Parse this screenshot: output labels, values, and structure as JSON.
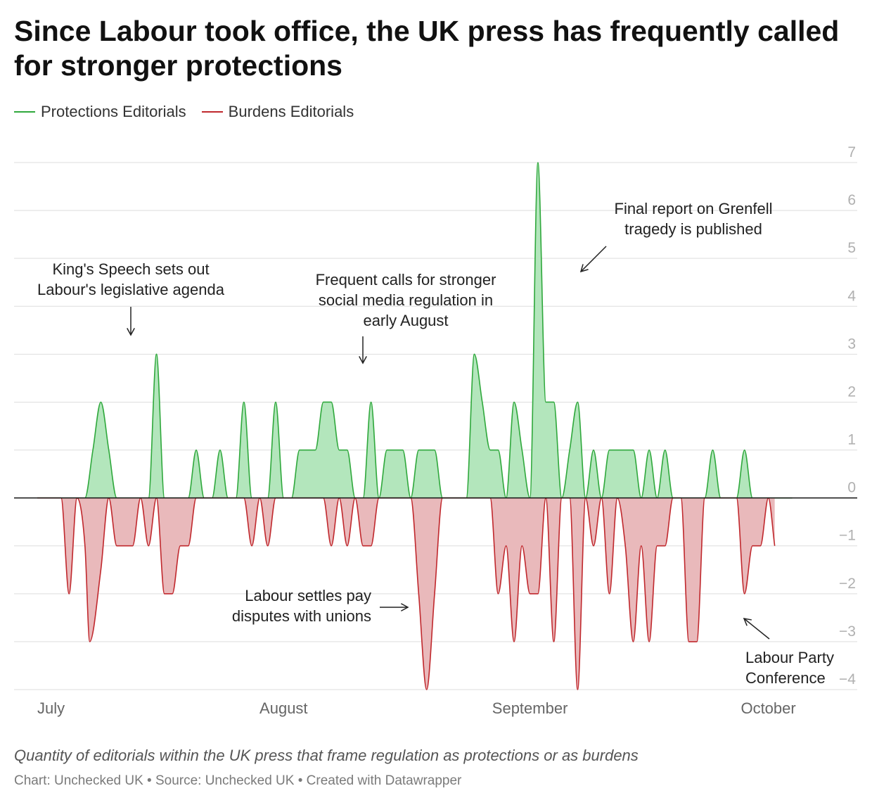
{
  "title": "Since Labour took office, the UK press has frequently called for stronger protections",
  "legend": [
    {
      "label": "Protections Editorials",
      "color": "#2fa83c"
    },
    {
      "label": "Burdens Editorials",
      "color": "#c0282d"
    }
  ],
  "colors": {
    "protections_line": "#2fa83c",
    "protections_fill": "#b3e6bc",
    "burdens_line": "#c0282d",
    "burdens_fill": "#e9b9bb"
  },
  "chart_data": {
    "type": "area",
    "title": "Since Labour took office, the UK press has frequently called for stronger protections",
    "xlabel": "",
    "ylabel": "",
    "ylim": [
      -4,
      7
    ],
    "x_range": [
      0,
      95
    ],
    "y_ticks": [
      {
        "value": 7,
        "label": "7"
      },
      {
        "value": 6,
        "label": "6"
      },
      {
        "value": 5,
        "label": "5"
      },
      {
        "value": 4,
        "label": "4"
      },
      {
        "value": 3,
        "label": "3"
      },
      {
        "value": 2,
        "label": "2"
      },
      {
        "value": 1,
        "label": "1"
      },
      {
        "value": 0,
        "label": "0"
      },
      {
        "value": -1,
        "label": "−1"
      },
      {
        "value": -2,
        "label": "−2"
      },
      {
        "value": -3,
        "label": "−3"
      },
      {
        "value": -4,
        "label": "−4"
      }
    ],
    "x_ticks": [
      {
        "day": 0,
        "label": "July"
      },
      {
        "day": 31,
        "label": "August"
      },
      {
        "day": 62,
        "label": "September"
      },
      {
        "day": 92,
        "label": "October"
      }
    ],
    "series": [
      {
        "name": "Protections Editorials",
        "points": [
          [
            0,
            0
          ],
          [
            6,
            0
          ],
          [
            7,
            1
          ],
          [
            8,
            2
          ],
          [
            9,
            1
          ],
          [
            10,
            0
          ],
          [
            14,
            0
          ],
          [
            15,
            3
          ],
          [
            16,
            0
          ],
          [
            19,
            0
          ],
          [
            20,
            1
          ],
          [
            21,
            0
          ],
          [
            22,
            0
          ],
          [
            23,
            1
          ],
          [
            24,
            0
          ],
          [
            25,
            0
          ],
          [
            26,
            2
          ],
          [
            27,
            0
          ],
          [
            29,
            0
          ],
          [
            30,
            2
          ],
          [
            31,
            0
          ],
          [
            32,
            0
          ],
          [
            33,
            1
          ],
          [
            34,
            1
          ],
          [
            35,
            1
          ],
          [
            36,
            2
          ],
          [
            37,
            2
          ],
          [
            38,
            1
          ],
          [
            39,
            1
          ],
          [
            40,
            0
          ],
          [
            41,
            0
          ],
          [
            42,
            2
          ],
          [
            43,
            0
          ],
          [
            44,
            1
          ],
          [
            45,
            1
          ],
          [
            46,
            1
          ],
          [
            47,
            0
          ],
          [
            48,
            1
          ],
          [
            49,
            1
          ],
          [
            50,
            1
          ],
          [
            51,
            0
          ],
          [
            54,
            0
          ],
          [
            55,
            3
          ],
          [
            56,
            2
          ],
          [
            57,
            1
          ],
          [
            58,
            1
          ],
          [
            59,
            0
          ],
          [
            60,
            2
          ],
          [
            61,
            1
          ],
          [
            62,
            0
          ],
          [
            63,
            7
          ],
          [
            64,
            2
          ],
          [
            65,
            2
          ],
          [
            66,
            0
          ],
          [
            67,
            1
          ],
          [
            68,
            2
          ],
          [
            69,
            0
          ],
          [
            70,
            1
          ],
          [
            71,
            0
          ],
          [
            72,
            1
          ],
          [
            73,
            1
          ],
          [
            74,
            1
          ],
          [
            75,
            1
          ],
          [
            76,
            0
          ],
          [
            77,
            1
          ],
          [
            78,
            0
          ],
          [
            79,
            1
          ],
          [
            80,
            0
          ],
          [
            84,
            0
          ],
          [
            85,
            1
          ],
          [
            86,
            0
          ],
          [
            88,
            0
          ],
          [
            89,
            1
          ],
          [
            90,
            0
          ],
          [
            95,
            0
          ]
        ]
      },
      {
        "name": "Burdens Editorials",
        "points": [
          [
            0,
            0
          ],
          [
            3,
            0
          ],
          [
            4,
            -2
          ],
          [
            5,
            0
          ],
          [
            6,
            -1
          ],
          [
            6.6,
            -3
          ],
          [
            8,
            -1.5
          ],
          [
            9,
            0
          ],
          [
            10,
            -1
          ],
          [
            11,
            -1
          ],
          [
            12,
            -1
          ],
          [
            13,
            0
          ],
          [
            14,
            -1
          ],
          [
            15,
            0
          ],
          [
            16,
            -2
          ],
          [
            17,
            -2
          ],
          [
            18,
            -1
          ],
          [
            19,
            -1
          ],
          [
            20,
            0
          ],
          [
            26,
            0
          ],
          [
            27,
            -1
          ],
          [
            28,
            0
          ],
          [
            29,
            -1
          ],
          [
            30,
            0
          ],
          [
            36,
            0
          ],
          [
            37,
            -1
          ],
          [
            38,
            0
          ],
          [
            39,
            -1
          ],
          [
            40,
            0
          ],
          [
            41,
            -1
          ],
          [
            42,
            -1
          ],
          [
            43,
            0
          ],
          [
            47,
            0
          ],
          [
            48,
            -2
          ],
          [
            49,
            -4
          ],
          [
            50,
            -2
          ],
          [
            51,
            0
          ],
          [
            57,
            0
          ],
          [
            58,
            -2
          ],
          [
            59,
            -1
          ],
          [
            60,
            -3
          ],
          [
            61,
            -1
          ],
          [
            62,
            -2
          ],
          [
            63,
            -2
          ],
          [
            64,
            0
          ],
          [
            65,
            -3
          ],
          [
            66,
            0
          ],
          [
            67,
            0
          ],
          [
            68,
            -4
          ],
          [
            69,
            0
          ],
          [
            70,
            -1
          ],
          [
            71,
            0
          ],
          [
            72,
            -2
          ],
          [
            73,
            0
          ],
          [
            74,
            -1
          ],
          [
            75,
            -3
          ],
          [
            76,
            -1
          ],
          [
            77,
            -3
          ],
          [
            78,
            -1
          ],
          [
            79,
            -1
          ],
          [
            80,
            0
          ],
          [
            81,
            0
          ],
          [
            82,
            -3
          ],
          [
            83,
            -3
          ],
          [
            84,
            0
          ],
          [
            88,
            0
          ],
          [
            89,
            -2
          ],
          [
            90,
            -1
          ],
          [
            91,
            -1
          ],
          [
            92,
            0
          ],
          [
            92.8,
            -1
          ]
        ]
      }
    ],
    "annotations": [
      {
        "id": "kings-speech",
        "lines": [
          "King's Speech sets out",
          "Labour's legislative agenda"
        ]
      },
      {
        "id": "social-media",
        "lines": [
          "Frequent calls for stronger",
          "social media regulation in",
          "early August"
        ]
      },
      {
        "id": "grenfell",
        "lines": [
          "Final report on Grenfell",
          "tragedy is published"
        ]
      },
      {
        "id": "pay-disputes",
        "lines": [
          "Labour settles pay",
          "disputes with unions"
        ]
      },
      {
        "id": "party-conference",
        "lines": [
          "Labour Party",
          "Conference"
        ]
      }
    ]
  },
  "footer": {
    "note": "Quantity of editorials within the UK press that frame regulation as protections or as burdens",
    "credit": "Chart: Unchecked UK • Source: Unchecked UK • Created with Datawrapper"
  }
}
